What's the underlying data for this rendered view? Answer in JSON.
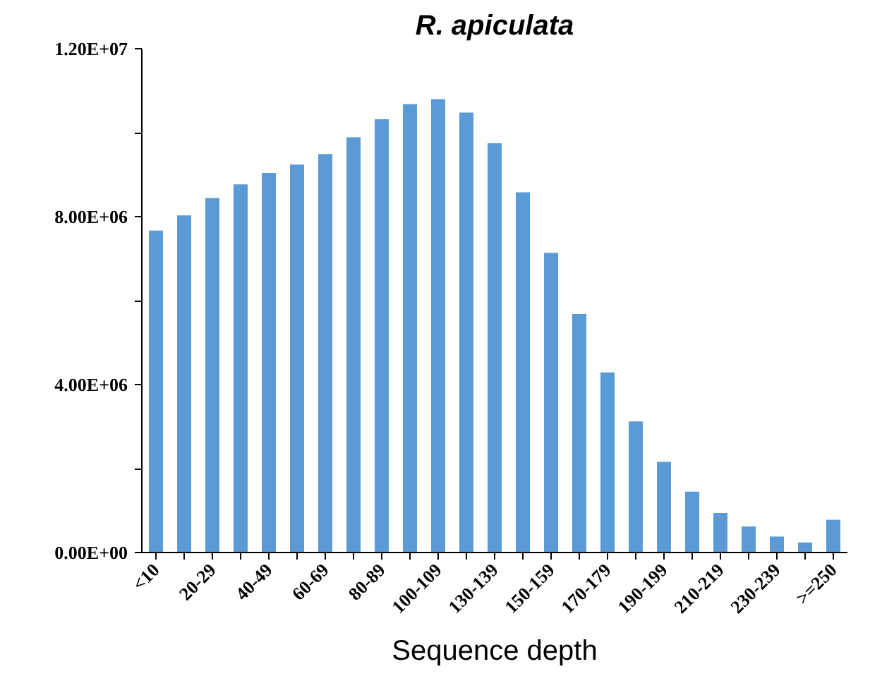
{
  "chart_data": {
    "type": "bar",
    "title": "R. apiculata",
    "xlabel": "Sequence depth",
    "categories": [
      "<10",
      null,
      "20-29",
      null,
      "40-49",
      null,
      "60-69",
      null,
      "80-89",
      null,
      "100-109",
      null,
      "130-139",
      null,
      "150-159",
      null,
      "170-179",
      null,
      "190-199",
      null,
      "210-219",
      null,
      "230-239",
      null,
      ">=250"
    ],
    "values": [
      7670000,
      8030000,
      8440000,
      8770000,
      9040000,
      9240000,
      9490000,
      9890000,
      10320000,
      10680000,
      10800000,
      10480000,
      9750000,
      8580000,
      7140000,
      5680000,
      4290000,
      3120000,
      2160000,
      1450000,
      940000,
      620000,
      380000,
      240000,
      780000
    ],
    "color": "#5b9bd5",
    "ylim": [
      0,
      12000000
    ],
    "yticks": [
      {
        "value": 0,
        "label": "0.00E+00"
      },
      {
        "value": 2000000,
        "label": null
      },
      {
        "value": 4000000,
        "label": "4.00E+06"
      },
      {
        "value": 6000000,
        "label": null
      },
      {
        "value": 8000000,
        "label": "8.00E+06"
      },
      {
        "value": 10000000,
        "label": null
      },
      {
        "value": 12000000,
        "label": "1.20E+07"
      }
    ],
    "grid": false
  }
}
